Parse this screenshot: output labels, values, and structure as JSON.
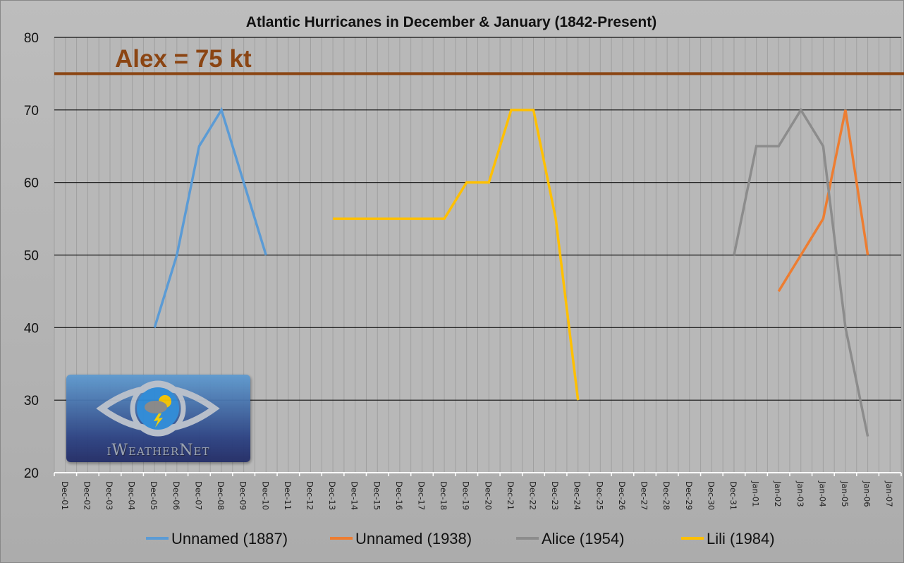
{
  "chart_data": {
    "type": "line",
    "title": "Atlantic Hurricanes in December & January (1842-Present)",
    "xlabel": "",
    "ylabel": "",
    "ylim": [
      20,
      80
    ],
    "yticks": [
      20,
      30,
      40,
      50,
      60,
      70,
      80
    ],
    "grid": true,
    "legend_position": "bottom",
    "categories": [
      "Dec-01",
      "Dec-02",
      "Dec-03",
      "Dec-04",
      "Dec-05",
      "Dec-06",
      "Dec-07",
      "Dec-08",
      "Dec-09",
      "Dec-10",
      "Dec-11",
      "Dec-12",
      "Dec-13",
      "Dec-14",
      "Dec-15",
      "Dec-16",
      "Dec-17",
      "Dec-18",
      "Dec-19",
      "Dec-20",
      "Dec-21",
      "Dec-22",
      "Dec-23",
      "Dec-24",
      "Dec-25",
      "Dec-26",
      "Dec-27",
      "Dec-28",
      "Dec-29",
      "Dec-30",
      "Dec-31",
      "Jan-01",
      "Jan-02",
      "Jan-03",
      "Jan-04",
      "Jan-05",
      "Jan-06",
      "Jan-07"
    ],
    "series": [
      {
        "name": "Unnamed (1887)",
        "color": "#5b9bd5",
        "points": [
          [
            "Dec-05",
            40
          ],
          [
            "Dec-06",
            50
          ],
          [
            "Dec-07",
            65
          ],
          [
            "Dec-08",
            70
          ],
          [
            "Dec-09",
            60
          ],
          [
            "Dec-10",
            50
          ]
        ]
      },
      {
        "name": "Unnamed (1938)",
        "color": "#ed7d31",
        "points": [
          [
            "Jan-02",
            45
          ],
          [
            "Jan-03",
            50
          ],
          [
            "Jan-04",
            55
          ],
          [
            "Jan-05",
            70
          ],
          [
            "Jan-06",
            50
          ]
        ]
      },
      {
        "name": "Alice (1954)",
        "color": "#8c8c8c",
        "points": [
          [
            "Dec-31",
            50
          ],
          [
            "Jan-01",
            65
          ],
          [
            "Jan-02",
            65
          ],
          [
            "Jan-03",
            70
          ],
          [
            "Jan-04",
            65
          ],
          [
            "Jan-05",
            40
          ],
          [
            "Jan-06",
            25
          ]
        ]
      },
      {
        "name": "Lili (1984)",
        "color": "#ffc000",
        "points": [
          [
            "Dec-13",
            55
          ],
          [
            "Dec-14",
            55
          ],
          [
            "Dec-15",
            55
          ],
          [
            "Dec-16",
            55
          ],
          [
            "Dec-17",
            55
          ],
          [
            "Dec-18",
            55
          ],
          [
            "Dec-19",
            60
          ],
          [
            "Dec-20",
            60
          ],
          [
            "Dec-21",
            70
          ],
          [
            "Dec-22",
            70
          ],
          [
            "Dec-23",
            55
          ],
          [
            "Dec-24",
            30
          ]
        ]
      }
    ],
    "reference_line": {
      "value": 75,
      "label": "Alex = 75 kt",
      "color": "#8b4513"
    }
  },
  "logo": {
    "text": "iWeatherNet"
  }
}
